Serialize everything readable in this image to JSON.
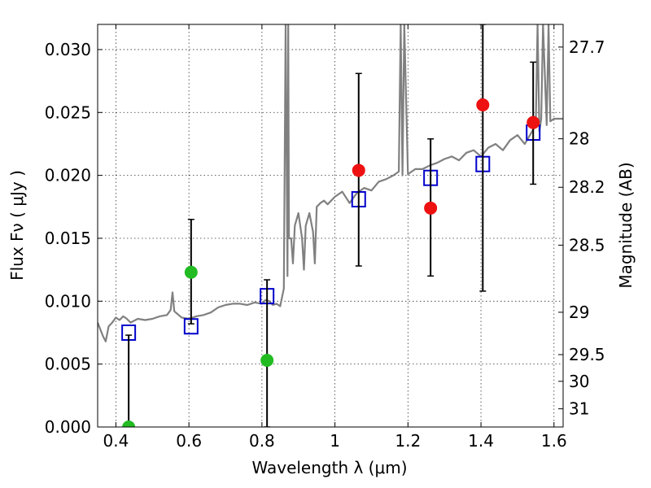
{
  "chart_data": {
    "type": "scatter",
    "xlabel": "Wavelength  λ (μm)",
    "ylabel": "Flux  Fν  ( μJy )",
    "y2label": "Magnitude (AB)",
    "xlim": [
      0.35,
      1.625
    ],
    "ylim": [
      0.0,
      0.032
    ],
    "grid": true,
    "x_ticks": [
      {
        "value": 0.4,
        "label": "0.4"
      },
      {
        "value": 0.6,
        "label": "0.6"
      },
      {
        "value": 0.8,
        "label": "0.8"
      },
      {
        "value": 1.0,
        "label": "1"
      },
      {
        "value": 1.2,
        "label": "1.2"
      },
      {
        "value": 1.4,
        "label": "1.4"
      },
      {
        "value": 1.6,
        "label": "1.6"
      }
    ],
    "y_ticks": [
      {
        "value": 0.0,
        "label": "0.000"
      },
      {
        "value": 0.005,
        "label": "0.005"
      },
      {
        "value": 0.01,
        "label": "0.010"
      },
      {
        "value": 0.015,
        "label": "0.015"
      },
      {
        "value": 0.02,
        "label": "0.020"
      },
      {
        "value": 0.025,
        "label": "0.025"
      },
      {
        "value": 0.03,
        "label": "0.030"
      }
    ],
    "y2_ticks": [
      {
        "value": 27.7,
        "label": "27.7"
      },
      {
        "value": 28.0,
        "label": "28"
      },
      {
        "value": 28.2,
        "label": "28.2"
      },
      {
        "value": 28.5,
        "label": "28.5"
      },
      {
        "value": 29.0,
        "label": "29"
      },
      {
        "value": 29.5,
        "label": "29.5"
      },
      {
        "value": 30.0,
        "label": "30"
      },
      {
        "value": 31.0,
        "label": "31"
      }
    ],
    "colors": {
      "model_spectrum": "#808080",
      "model_photometry": "#0000cc",
      "observed_optical": "#22bb22",
      "observed_nir": "#ee1111",
      "errorbar": "#000000"
    },
    "series": [
      {
        "type": "line",
        "key": "model_spectrum",
        "x": [
          0.35,
          0.365,
          0.372,
          0.38,
          0.39,
          0.4,
          0.41,
          0.42,
          0.43,
          0.44,
          0.46,
          0.48,
          0.5,
          0.52,
          0.54,
          0.55,
          0.555,
          0.56,
          0.58,
          0.6,
          0.62,
          0.64,
          0.66,
          0.68,
          0.7,
          0.72,
          0.74,
          0.76,
          0.78,
          0.8,
          0.81,
          0.82,
          0.83,
          0.84,
          0.85,
          0.86,
          0.865,
          0.87,
          0.872,
          0.874,
          0.88,
          0.885,
          0.89,
          0.9,
          0.91,
          0.915,
          0.92,
          0.93,
          0.94,
          0.945,
          0.95,
          0.96,
          0.97,
          0.98,
          1.0,
          1.02,
          1.04,
          1.06,
          1.08,
          1.1,
          1.12,
          1.14,
          1.16,
          1.175,
          1.18,
          1.185,
          1.19,
          1.2,
          1.22,
          1.24,
          1.26,
          1.28,
          1.3,
          1.32,
          1.34,
          1.36,
          1.38,
          1.4,
          1.42,
          1.44,
          1.46,
          1.48,
          1.5,
          1.52,
          1.54,
          1.55,
          1.555,
          1.56,
          1.565,
          1.57,
          1.58,
          1.585,
          1.59,
          1.6,
          1.625
        ],
        "y": [
          0.0083,
          0.0072,
          0.0068,
          0.008,
          0.0083,
          0.0087,
          0.0085,
          0.0088,
          0.0086,
          0.0083,
          0.0086,
          0.0085,
          0.0086,
          0.0088,
          0.0089,
          0.0093,
          0.0107,
          0.0092,
          0.0087,
          0.0086,
          0.0088,
          0.0089,
          0.0091,
          0.0095,
          0.0097,
          0.0098,
          0.0098,
          0.0097,
          0.0099,
          0.0098,
          0.0101,
          0.01,
          0.0097,
          0.0098,
          0.0096,
          0.011,
          0.032,
          0.012,
          0.032,
          0.015,
          0.015,
          0.013,
          0.016,
          0.017,
          0.015,
          0.0125,
          0.016,
          0.017,
          0.0155,
          0.013,
          0.0175,
          0.0178,
          0.018,
          0.0177,
          0.0183,
          0.0187,
          0.0178,
          0.0186,
          0.019,
          0.0188,
          0.0195,
          0.0197,
          0.02,
          0.0203,
          0.032,
          0.02,
          0.032,
          0.0201,
          0.0205,
          0.0205,
          0.0208,
          0.021,
          0.0213,
          0.0215,
          0.0212,
          0.0218,
          0.022,
          0.0215,
          0.0222,
          0.0225,
          0.022,
          0.0228,
          0.0232,
          0.0225,
          0.0235,
          0.024,
          0.032,
          0.0235,
          0.0245,
          0.032,
          0.024,
          0.032,
          0.0243,
          0.0245,
          0.0245
        ]
      },
      {
        "type": "scatter",
        "key": "model_photometry",
        "marker": "square-open",
        "x": [
          0.435,
          0.606,
          0.814,
          1.065,
          1.262,
          1.405,
          1.543
        ],
        "y": [
          0.0075,
          0.008,
          0.0104,
          0.0181,
          0.0198,
          0.0209,
          0.0234
        ]
      },
      {
        "type": "scatter",
        "key": "observed_optical",
        "marker": "circle",
        "x": [
          0.435,
          0.606,
          0.814
        ],
        "y": [
          0.0,
          0.0123,
          0.0053
        ],
        "yerr_low": [
          0.0,
          0.0082,
          0.0
        ],
        "yerr_high": [
          0.0073,
          0.0165,
          0.0117
        ]
      },
      {
        "type": "scatter",
        "key": "observed_nir",
        "marker": "circle",
        "x": [
          1.065,
          1.262,
          1.405,
          1.543
        ],
        "y": [
          0.0204,
          0.0174,
          0.0256,
          0.0242
        ],
        "yerr_low": [
          0.0128,
          0.012,
          0.0108,
          0.0193
        ],
        "yerr_high": [
          0.0281,
          0.0229,
          0.032,
          0.029
        ]
      }
    ]
  }
}
